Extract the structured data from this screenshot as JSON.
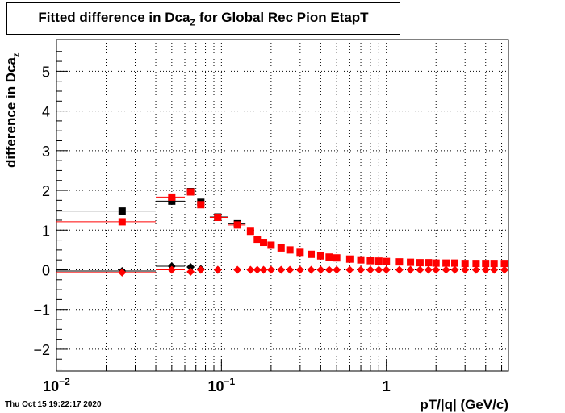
{
  "chart_data": {
    "type": "scatter",
    "title_main": "Fitted difference in Dca",
    "title_sub": "Z",
    "title_rest": " for Global Rec Pion EtapT",
    "xlabel": "pT/|q| (GeV/c)",
    "ylabel_main": "difference in Dca",
    "ylabel_sub": "z",
    "x_scale": "log",
    "xlim": [
      0.01,
      5.5
    ],
    "ylim": [
      -2.55,
      5.8
    ],
    "grid": true,
    "x_ticks": [
      {
        "v": 0.01,
        "label": "10",
        "exp": "−2"
      },
      {
        "v": 0.1,
        "label": "10",
        "exp": "−1"
      },
      {
        "v": 1,
        "label": "1",
        "exp": ""
      }
    ],
    "y_ticks": [
      {
        "v": -2,
        "label": "−2"
      },
      {
        "v": -1,
        "label": "−1"
      },
      {
        "v": 0,
        "label": "0"
      },
      {
        "v": 1,
        "label": "1"
      },
      {
        "v": 2,
        "label": "2"
      },
      {
        "v": 3,
        "label": "3"
      },
      {
        "v": 4,
        "label": "4"
      },
      {
        "v": 5,
        "label": "5"
      }
    ],
    "series": [
      {
        "color": "#000000",
        "marker": "square",
        "points": [
          {
            "x": 0.025,
            "y": 1.48,
            "xlo": 0.01,
            "xhi": 0.04,
            "err": 0.05
          },
          {
            "x": 0.05,
            "y": 1.73,
            "xlo": 0.04,
            "xhi": 0.06,
            "err": 0.05
          },
          {
            "x": 0.065,
            "y": 1.97
          },
          {
            "x": 0.075,
            "y": 1.7
          },
          {
            "x": 0.095,
            "y": 1.33,
            "xlo": 0.085,
            "xhi": 0.11
          },
          {
            "x": 0.125,
            "y": 1.16,
            "xlo": 0.11,
            "xhi": 0.14
          }
        ]
      },
      {
        "color": "#ff0000",
        "marker": "square",
        "points": [
          {
            "x": 0.025,
            "y": 1.21,
            "xlo": 0.01,
            "xhi": 0.04
          },
          {
            "x": 0.05,
            "y": 1.83,
            "xlo": 0.04,
            "xhi": 0.06
          },
          {
            "x": 0.065,
            "y": 1.96
          },
          {
            "x": 0.075,
            "y": 1.64
          },
          {
            "x": 0.095,
            "y": 1.32,
            "xlo": 0.085,
            "xhi": 0.11
          },
          {
            "x": 0.125,
            "y": 1.13,
            "xlo": 0.11,
            "xhi": 0.14
          },
          {
            "x": 0.15,
            "y": 0.97
          },
          {
            "x": 0.165,
            "y": 0.77
          },
          {
            "x": 0.18,
            "y": 0.69
          },
          {
            "x": 0.2,
            "y": 0.62
          },
          {
            "x": 0.23,
            "y": 0.55
          },
          {
            "x": 0.26,
            "y": 0.5
          },
          {
            "x": 0.3,
            "y": 0.44
          },
          {
            "x": 0.35,
            "y": 0.39
          },
          {
            "x": 0.4,
            "y": 0.35
          },
          {
            "x": 0.45,
            "y": 0.32
          },
          {
            "x": 0.5,
            "y": 0.3
          },
          {
            "x": 0.6,
            "y": 0.27
          },
          {
            "x": 0.7,
            "y": 0.25
          },
          {
            "x": 0.8,
            "y": 0.23
          },
          {
            "x": 0.9,
            "y": 0.22
          },
          {
            "x": 1.0,
            "y": 0.21
          },
          {
            "x": 1.2,
            "y": 0.2
          },
          {
            "x": 1.4,
            "y": 0.19
          },
          {
            "x": 1.6,
            "y": 0.18
          },
          {
            "x": 1.8,
            "y": 0.18
          },
          {
            "x": 2.0,
            "y": 0.17
          },
          {
            "x": 2.3,
            "y": 0.17
          },
          {
            "x": 2.6,
            "y": 0.17
          },
          {
            "x": 3.0,
            "y": 0.16
          },
          {
            "x": 3.5,
            "y": 0.16
          },
          {
            "x": 4.0,
            "y": 0.16
          },
          {
            "x": 4.5,
            "y": 0.16
          },
          {
            "x": 5.2,
            "y": 0.16
          }
        ]
      },
      {
        "color": "#000000",
        "marker": "diamond",
        "points": [
          {
            "x": 0.025,
            "y": -0.03,
            "xlo": 0.01,
            "xhi": 0.04
          },
          {
            "x": 0.05,
            "y": 0.09,
            "xlo": 0.04,
            "xhi": 0.06
          },
          {
            "x": 0.065,
            "y": 0.07
          },
          {
            "x": 0.075,
            "y": 0.02
          },
          {
            "x": 0.095,
            "y": 0.0
          }
        ]
      },
      {
        "color": "#ff0000",
        "marker": "diamond",
        "points": [
          {
            "x": 0.025,
            "y": -0.07,
            "xlo": 0.01,
            "xhi": 0.04
          },
          {
            "x": 0.05,
            "y": 0.0,
            "xlo": 0.04,
            "xhi": 0.06
          },
          {
            "x": 0.065,
            "y": -0.05
          },
          {
            "x": 0.075,
            "y": 0.0
          },
          {
            "x": 0.095,
            "y": 0.0
          },
          {
            "x": 0.125,
            "y": 0.0
          },
          {
            "x": 0.15,
            "y": 0.0
          },
          {
            "x": 0.165,
            "y": 0.0
          },
          {
            "x": 0.18,
            "y": 0.0
          },
          {
            "x": 0.2,
            "y": 0.0
          },
          {
            "x": 0.23,
            "y": 0.0
          },
          {
            "x": 0.26,
            "y": 0.0
          },
          {
            "x": 0.3,
            "y": 0.0
          },
          {
            "x": 0.35,
            "y": 0.0
          },
          {
            "x": 0.4,
            "y": 0.0
          },
          {
            "x": 0.45,
            "y": 0.0
          },
          {
            "x": 0.5,
            "y": 0.0
          },
          {
            "x": 0.6,
            "y": 0.0
          },
          {
            "x": 0.7,
            "y": 0.0
          },
          {
            "x": 0.8,
            "y": 0.0
          },
          {
            "x": 0.9,
            "y": 0.0
          },
          {
            "x": 1.0,
            "y": 0.0
          },
          {
            "x": 1.2,
            "y": 0.0
          },
          {
            "x": 1.4,
            "y": 0.0
          },
          {
            "x": 1.6,
            "y": 0.0
          },
          {
            "x": 1.8,
            "y": 0.0
          },
          {
            "x": 2.0,
            "y": 0.0
          },
          {
            "x": 2.3,
            "y": 0.0
          },
          {
            "x": 2.6,
            "y": 0.0
          },
          {
            "x": 3.0,
            "y": 0.0
          },
          {
            "x": 3.5,
            "y": 0.0
          },
          {
            "x": 4.0,
            "y": 0.0
          },
          {
            "x": 4.5,
            "y": 0.0
          },
          {
            "x": 5.2,
            "y": 0.0
          }
        ]
      }
    ]
  },
  "footer": {
    "timestamp": "Thu Oct 15 19:22:17 2020"
  }
}
